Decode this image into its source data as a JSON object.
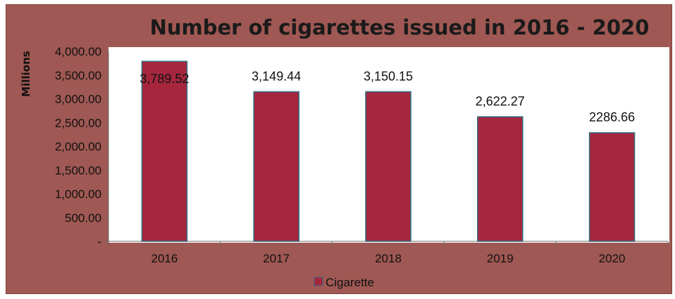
{
  "chart_data": {
    "type": "bar",
    "title": "Number of cigarettes issued in 2016 - 2020",
    "ylabel": "Millions",
    "xlabel": "",
    "categories": [
      "2016",
      "2017",
      "2018",
      "2019",
      "2020"
    ],
    "series": [
      {
        "name": "Cigarette",
        "values": [
          3789.52,
          3149.44,
          3150.15,
          2622.27,
          2286.66
        ]
      }
    ],
    "data_labels": [
      "3,789.52",
      "3,149.44",
      "3,150.15",
      "2,622.27",
      "2286.66"
    ],
    "yticks": [
      "-",
      "500.00",
      "1,000.00",
      "1,500.00",
      "2,000.00",
      "2,500.00",
      "3,000.00",
      "3,500.00",
      "4,000.00"
    ],
    "ylim": [
      0,
      4000
    ],
    "legend_position": "bottom",
    "grid": false,
    "colors": {
      "background": "#9f5853",
      "plot_area": "#ffffff",
      "bar": "#a6263e",
      "bar_edge": "#2f6f82"
    }
  }
}
